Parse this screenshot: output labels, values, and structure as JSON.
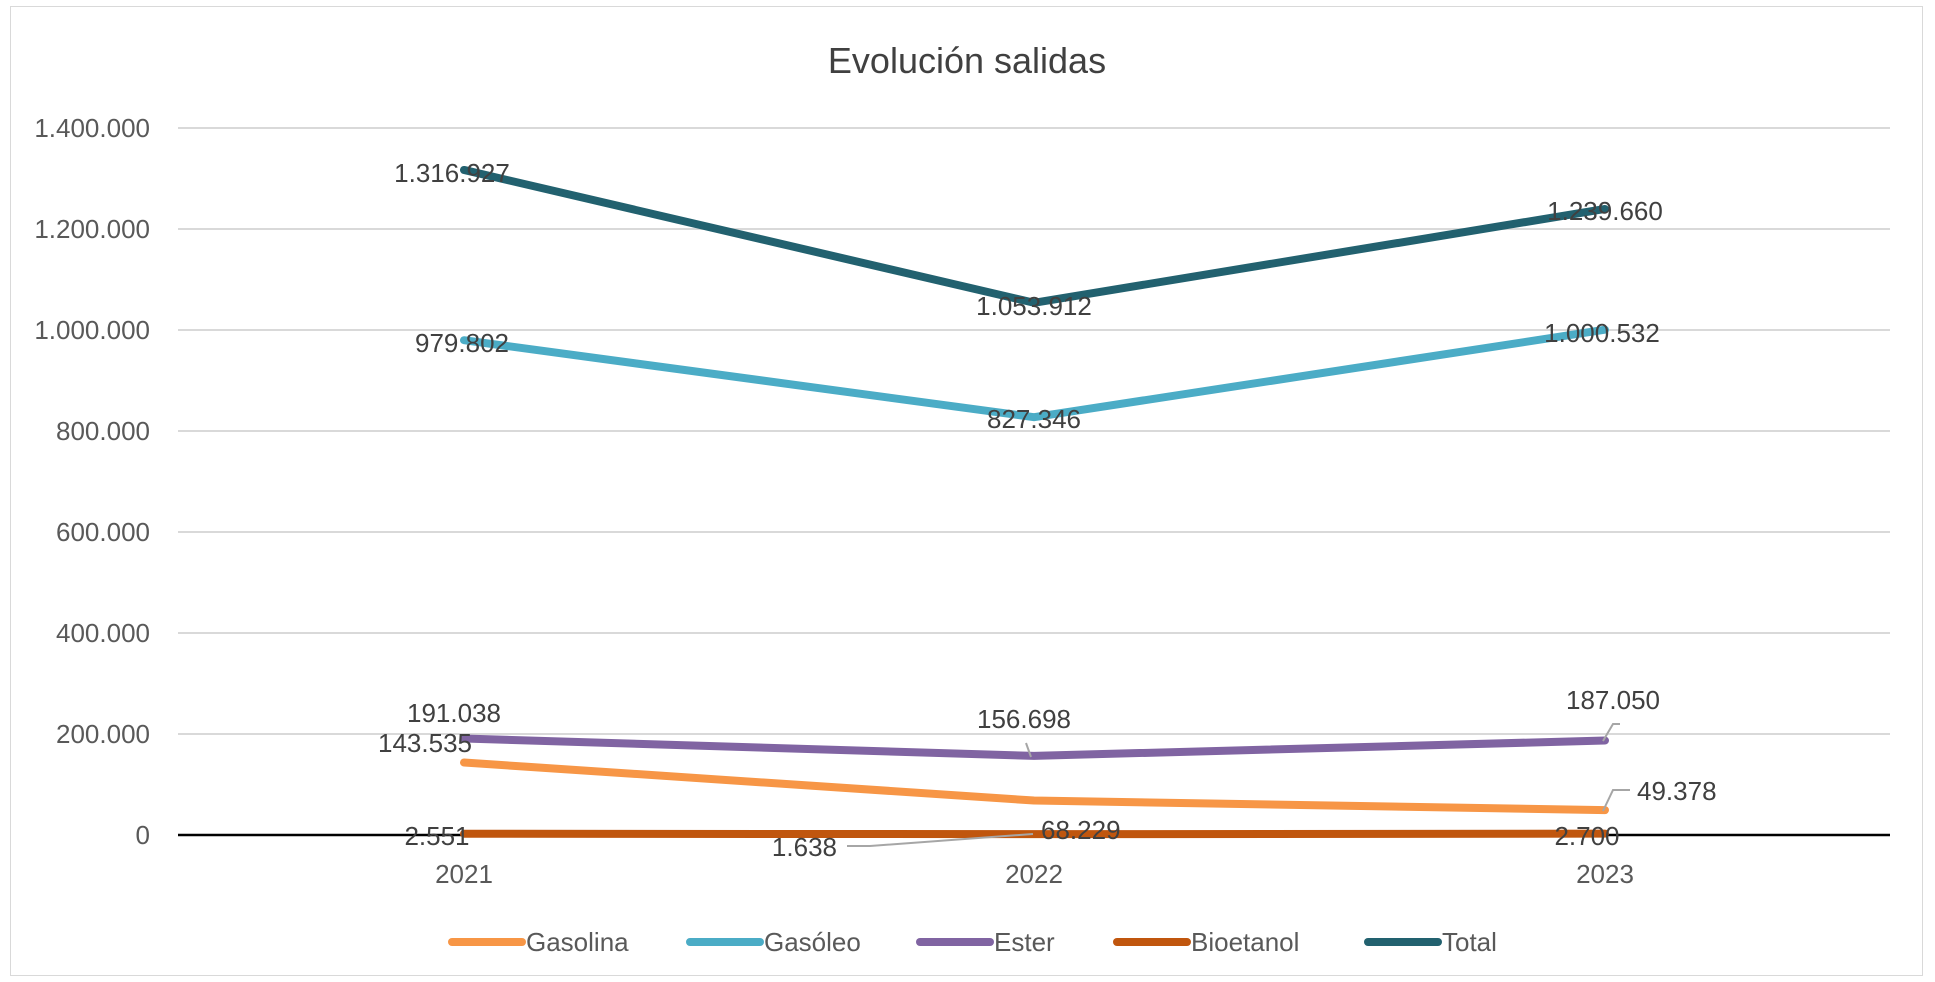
{
  "chart_data": {
    "type": "line",
    "title": "Evolución salidas",
    "xlabel": "",
    "ylabel": "",
    "categories": [
      "2021",
      "2022",
      "2023"
    ],
    "ylim": [
      0,
      1400000
    ],
    "yticks": [
      0,
      200000,
      400000,
      600000,
      800000,
      1000000,
      1200000,
      1400000
    ],
    "ytick_labels": [
      "0",
      "200.000",
      "400.000",
      "600.000",
      "800.000",
      "1.000.000",
      "1.200.000",
      "1.400.000"
    ],
    "grid": true,
    "legend": "bottom",
    "series": [
      {
        "name": "Gasolina",
        "color": "#F79646",
        "values": [
          143535,
          68229,
          49378
        ],
        "labels": [
          "143.535",
          "68.229",
          "49.378"
        ]
      },
      {
        "name": "Gasóleo",
        "color": "#4BACC6",
        "values": [
          979802,
          827346,
          1000532
        ],
        "labels": [
          "979.802",
          "827.346",
          "1.000.532"
        ]
      },
      {
        "name": "Ester",
        "color": "#8064A2",
        "values": [
          191038,
          156698,
          187050
        ],
        "labels": [
          "191.038",
          "156.698",
          "187.050"
        ]
      },
      {
        "name": "Bioetanol",
        "color": "#C0560E",
        "values": [
          2551,
          1638,
          2700
        ],
        "labels": [
          "2.551",
          "1.638",
          "2.700"
        ]
      },
      {
        "name": "Total",
        "color": "#22616F",
        "values": [
          1316927,
          1053912,
          1239660
        ],
        "labels": [
          "1.316.927",
          "1.053.912",
          "1.239.660"
        ]
      }
    ]
  }
}
